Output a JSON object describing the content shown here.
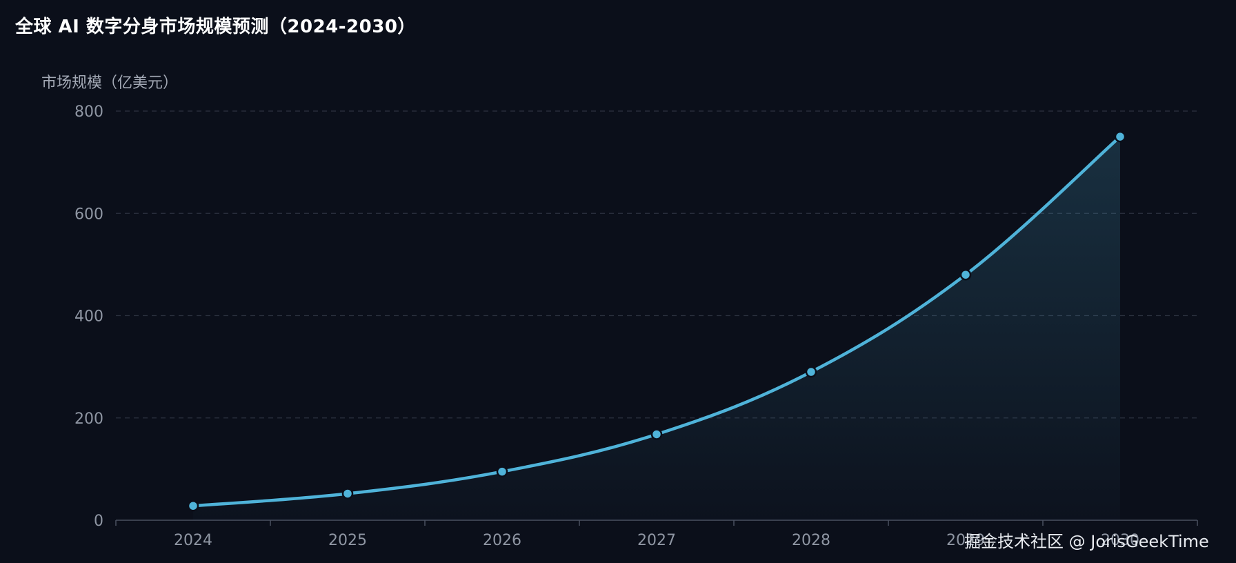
{
  "chart_data": {
    "type": "area",
    "title": "全球 AI 数字分身市场规模预测（2024-2030）",
    "ylabel": "市场规模（亿美元）",
    "xlabel": "",
    "categories": [
      "2024",
      "2025",
      "2026",
      "2027",
      "2028",
      "2029",
      "2030"
    ],
    "series": [
      {
        "values": [
          28,
          52,
          95,
          168,
          290,
          480,
          750
        ]
      }
    ],
    "ylim": [
      0,
      800
    ],
    "yticks": [
      0,
      200,
      400,
      600,
      800
    ],
    "grid": true,
    "smooth": true,
    "line_color": "#4fb3d9",
    "fill_color": "#1a3a52"
  },
  "watermark": "掘金技术社区 @ JorisGeekTime"
}
